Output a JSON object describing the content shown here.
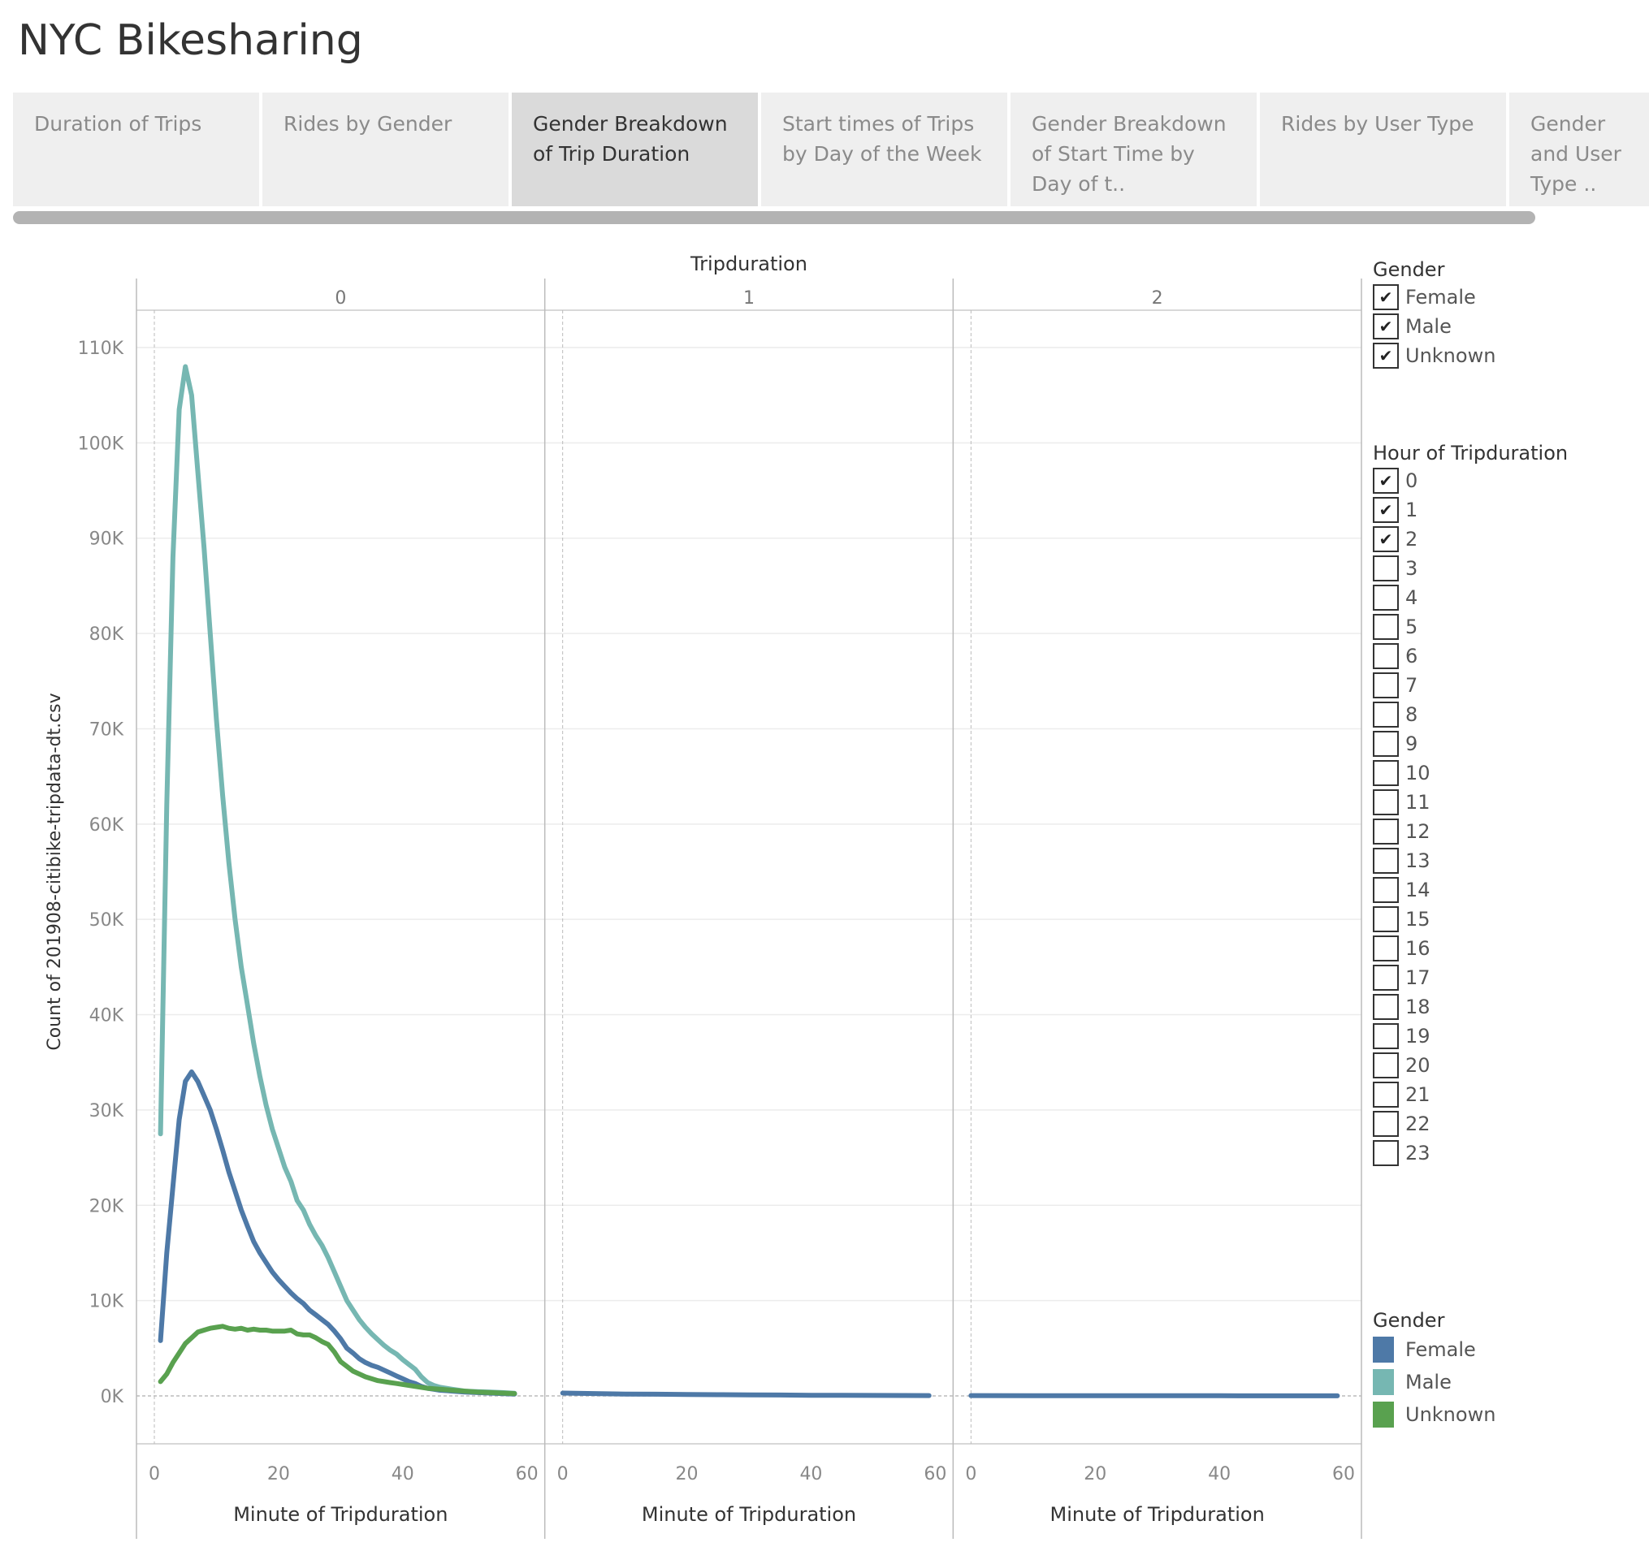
{
  "app": {
    "title": "NYC Bikesharing"
  },
  "tabs": [
    {
      "label": "Duration of Trips",
      "active": false
    },
    {
      "label": "Rides by Gender",
      "active": false
    },
    {
      "label": "Gender Breakdown of Trip Duration",
      "active": true
    },
    {
      "label": "Start times of Trips by Day of the Week",
      "active": false
    },
    {
      "label": "Gender Breakdown of Start Time by Day of t..",
      "active": false
    },
    {
      "label": "Rides by User Type",
      "active": false
    },
    {
      "label": "Gender and User Type ..",
      "active": false
    }
  ],
  "filters": {
    "gender": {
      "title": "Gender",
      "items": [
        {
          "label": "Female",
          "checked": true
        },
        {
          "label": "Male",
          "checked": true
        },
        {
          "label": "Unknown",
          "checked": true
        }
      ]
    },
    "hour": {
      "title": "Hour of Tripduration",
      "items": [
        {
          "label": "0",
          "checked": true
        },
        {
          "label": "1",
          "checked": true
        },
        {
          "label": "2",
          "checked": true
        },
        {
          "label": "3",
          "checked": false
        },
        {
          "label": "4",
          "checked": false
        },
        {
          "label": "5",
          "checked": false
        },
        {
          "label": "6",
          "checked": false
        },
        {
          "label": "7",
          "checked": false
        },
        {
          "label": "8",
          "checked": false
        },
        {
          "label": "9",
          "checked": false
        },
        {
          "label": "10",
          "checked": false
        },
        {
          "label": "11",
          "checked": false
        },
        {
          "label": "12",
          "checked": false
        },
        {
          "label": "13",
          "checked": false
        },
        {
          "label": "14",
          "checked": false
        },
        {
          "label": "15",
          "checked": false
        },
        {
          "label": "16",
          "checked": false
        },
        {
          "label": "17",
          "checked": false
        },
        {
          "label": "18",
          "checked": false
        },
        {
          "label": "19",
          "checked": false
        },
        {
          "label": "20",
          "checked": false
        },
        {
          "label": "21",
          "checked": false
        },
        {
          "label": "22",
          "checked": false
        },
        {
          "label": "23",
          "checked": false
        }
      ]
    }
  },
  "color_legend": {
    "title": "Gender",
    "items": [
      {
        "label": "Female",
        "color": "#4e79a7"
      },
      {
        "label": "Male",
        "color": "#76b7b2"
      },
      {
        "label": "Unknown",
        "color": "#59a14f"
      }
    ]
  },
  "chart_data": {
    "type": "line",
    "title": "Tripduration",
    "ylabel": "Count of 201908-citibike-tripdata-dt.csv",
    "xlabel": "Minute of Tripduration",
    "ylim": [
      0,
      110000
    ],
    "yticks": [
      0,
      10000,
      20000,
      30000,
      40000,
      50000,
      60000,
      70000,
      80000,
      90000,
      100000,
      110000
    ],
    "ytick_labels": [
      "0K",
      "10K",
      "20K",
      "30K",
      "40K",
      "50K",
      "60K",
      "70K",
      "80K",
      "90K",
      "100K",
      "110K"
    ],
    "xlim": [
      0,
      60
    ],
    "xticks": [
      0,
      20,
      40,
      60
    ],
    "grid": true,
    "legend": "right",
    "panels": [
      {
        "label": "0",
        "series": [
          {
            "name": "Male",
            "color": "#76b7b2",
            "x": [
              1,
              2,
              3,
              4,
              5,
              6,
              7,
              8,
              9,
              10,
              11,
              12,
              13,
              14,
              15,
              16,
              17,
              18,
              19,
              20,
              21,
              22,
              23,
              24,
              25,
              26,
              27,
              28,
              29,
              30,
              31,
              32,
              33,
              34,
              35,
              36,
              37,
              38,
              39,
              40,
              41,
              42,
              43,
              44,
              45,
              46,
              47,
              48,
              49,
              50,
              52,
              54,
              56,
              58
            ],
            "values": [
              27500,
              62000,
              88000,
              103500,
              108000,
              105000,
              97000,
              89000,
              80000,
              71000,
              63000,
              56000,
              50000,
              45000,
              41000,
              37000,
              33500,
              30500,
              28000,
              26000,
              24000,
              22500,
              20500,
              19500,
              18000,
              16800,
              15800,
              14500,
              13000,
              11500,
              10000,
              9000,
              8000,
              7200,
              6500,
              5900,
              5300,
              4800,
              4400,
              3800,
              3300,
              2800,
              2000,
              1400,
              1100,
              900,
              800,
              700,
              600,
              500,
              450,
              400,
              350,
              280
            ]
          },
          {
            "name": "Female",
            "color": "#4e79a7",
            "x": [
              1,
              2,
              3,
              4,
              5,
              6,
              7,
              8,
              9,
              10,
              11,
              12,
              13,
              14,
              15,
              16,
              17,
              18,
              19,
              20,
              21,
              22,
              23,
              24,
              25,
              26,
              27,
              28,
              29,
              30,
              31,
              32,
              33,
              34,
              35,
              36,
              37,
              38,
              39,
              40,
              41,
              42,
              43,
              44,
              45,
              46,
              47,
              48,
              50,
              52,
              54,
              56,
              58
            ],
            "values": [
              5800,
              15000,
              22000,
              29000,
              33000,
              34000,
              33000,
              31500,
              30000,
              28000,
              25800,
              23500,
              21500,
              19500,
              17800,
              16200,
              15000,
              14000,
              13000,
              12200,
              11500,
              10800,
              10200,
              9700,
              9000,
              8500,
              8000,
              7500,
              6800,
              6000,
              5000,
              4500,
              3900,
              3500,
              3200,
              3000,
              2700,
              2400,
              2100,
              1800,
              1500,
              1300,
              1000,
              800,
              700,
              600,
              550,
              500,
              400,
              350,
              300,
              250,
              200
            ]
          },
          {
            "name": "Unknown",
            "color": "#59a14f",
            "x": [
              1,
              2,
              3,
              4,
              5,
              6,
              7,
              8,
              9,
              10,
              11,
              12,
              13,
              14,
              15,
              16,
              17,
              18,
              19,
              20,
              21,
              22,
              23,
              24,
              25,
              26,
              27,
              28,
              29,
              30,
              31,
              32,
              33,
              34,
              35,
              36,
              37,
              38,
              39,
              40,
              42,
              44,
              46,
              48,
              50,
              52,
              54,
              56,
              58
            ],
            "values": [
              1500,
              2300,
              3500,
              4500,
              5500,
              6100,
              6700,
              6900,
              7100,
              7200,
              7300,
              7100,
              7000,
              7100,
              6900,
              7000,
              6900,
              6900,
              6800,
              6800,
              6800,
              6900,
              6500,
              6400,
              6400,
              6100,
              5700,
              5400,
              4600,
              3600,
              3100,
              2600,
              2300,
              2000,
              1800,
              1600,
              1500,
              1400,
              1300,
              1200,
              1000,
              800,
              700,
              600,
              500,
              400,
              350,
              300,
              250
            ]
          }
        ]
      },
      {
        "label": "1",
        "series": [
          {
            "name": "Female",
            "color": "#4e79a7",
            "x": [
              0,
              5,
              10,
              15,
              20,
              25,
              30,
              35,
              40,
              45,
              50,
              55,
              59
            ],
            "values": [
              300,
              250,
              200,
              180,
              150,
              130,
              110,
              90,
              70,
              60,
              50,
              40,
              30
            ]
          }
        ]
      },
      {
        "label": "2",
        "series": [
          {
            "name": "Female",
            "color": "#4e79a7",
            "x": [
              0,
              10,
              20,
              30,
              40,
              50,
              59
            ],
            "values": [
              30,
              25,
              20,
              18,
              15,
              12,
              10
            ]
          }
        ]
      }
    ]
  }
}
